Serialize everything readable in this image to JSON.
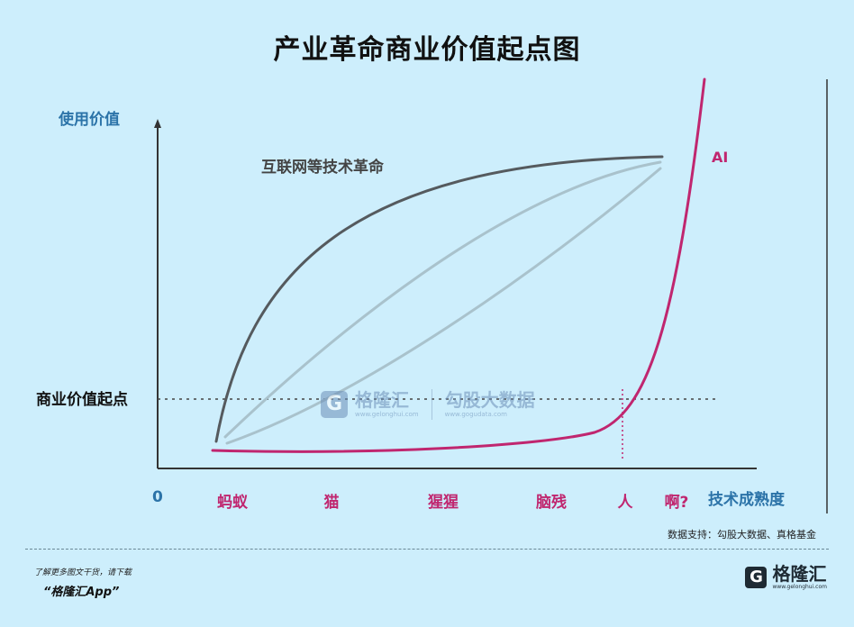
{
  "title": "产业革命商业价值起点图",
  "chart_data": {
    "type": "line",
    "ylabel": "使用价值",
    "xlabel": "技术成熟度",
    "origin_label": "0",
    "categories": [
      "蚂蚁",
      "猫",
      "猩猩",
      "脑残",
      "人",
      "啊?"
    ],
    "threshold": {
      "label": "商业价值起点",
      "style": "dotted"
    },
    "series": [
      {
        "name": "互联网等技术革命",
        "color": "#555a5e"
      },
      {
        "name": "",
        "color": "#a9c2cc"
      },
      {
        "name": "",
        "color": "#a9c2cc"
      },
      {
        "name": "AI",
        "color": "#c0266f"
      }
    ],
    "grid": false
  },
  "source": "数据支持：勾股大数据、真格基金",
  "watermark": {
    "left_name": "格隆汇",
    "left_url": "www.gelonghui.com",
    "right_name": "勾股大数据",
    "right_url": "www.gogudata.com",
    "mark": "G"
  },
  "footer": {
    "note": "了解更多图文干货，请下载",
    "app": "“格隆汇App”",
    "brand_mark": "G",
    "brand_name": "格隆汇",
    "brand_url": "www.gelonghui.com"
  }
}
